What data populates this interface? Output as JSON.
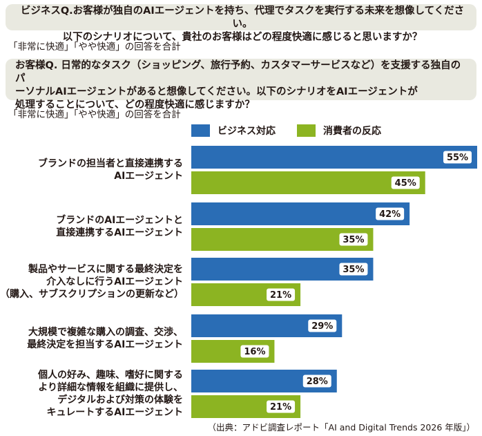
{
  "question_business": {
    "line1": "ビジネスQ.お客様が独自のAIエージェントを持ち、代理でタスクを実行する未来を想像してください。",
    "line2": "以下のシナリオについて、貴社のお客様はどの程度快適に感じると思いますか？"
  },
  "note_business": "「非常に快適」「やや快適」の回答を合計",
  "question_consumer": {
    "line1": "お客様Q.  日常的なタスク（ショッピング、旅行予約、カスタマーサービスなど）を支援する独自のパ",
    "line2": "ーソナルAIエージェントがあると想像してください。以下のシナリオをAIエージェントが",
    "line3": "処理することについて、どの程度快適に感じますか？"
  },
  "note_consumer": "「非常に快適」「やや快適」の回答を合計",
  "source": "（出典：アドビ調査レポート「AI and Digital Trends 2026 年版」）",
  "chart_data": {
    "type": "bar",
    "orientation": "horizontal",
    "categories": [
      "ブランドの担当者と直接連携する\nAIエージェント",
      "ブランドのAIエージェントと\n直接連携するAIエージェント",
      "製品やサービスに関する最終決定を\n介入なしに行うAIエージェント\n（購入、サブスクリプションの更新など）",
      "大規模で複雑な購入の調査、交渉、\n最終決定を担当するAIエージェント",
      "個人の好み、趣味、嗜好に関する\nより詳細な情報を組織に提供し、\nデジタルおよび対策の体験を\nキュレートするAIエージェント"
    ],
    "series": [
      {
        "name": "ビジネス対応",
        "color": "#2a6db5",
        "values": [
          55,
          42,
          35,
          29,
          28
        ],
        "labels": [
          "55%",
          "42%",
          "35%",
          "29%",
          "28%"
        ]
      },
      {
        "name": "消費者の反応",
        "color": "#8cb422",
        "values": [
          45,
          35,
          21,
          16,
          21
        ],
        "labels": [
          "45%",
          "35%",
          "21%",
          "16%",
          "21%"
        ]
      }
    ],
    "xlim": [
      0,
      55
    ],
    "grid": false,
    "legend": "top"
  }
}
